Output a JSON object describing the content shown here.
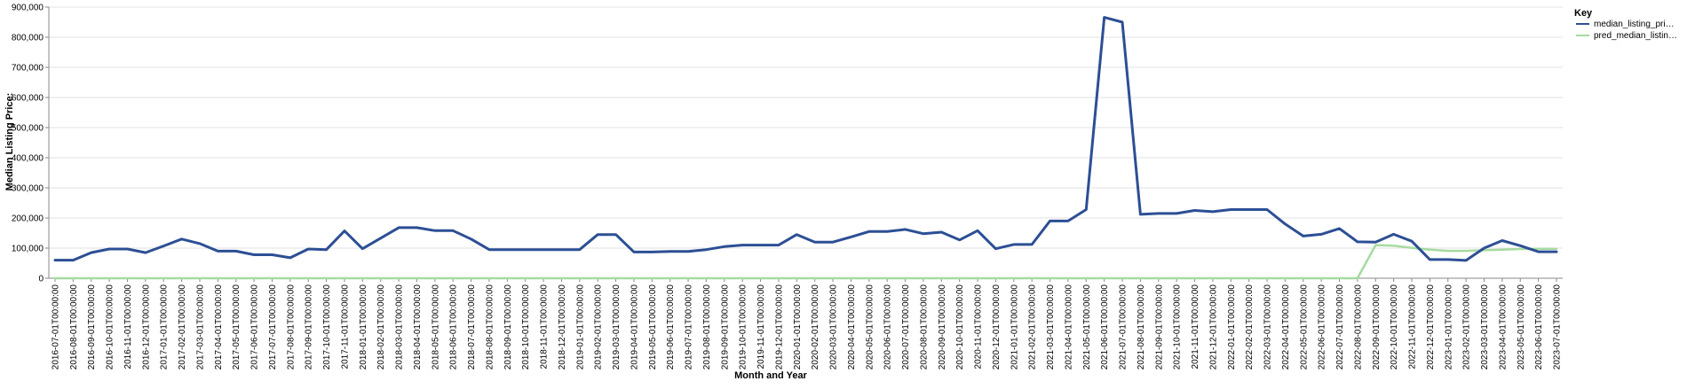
{
  "chart_data": {
    "type": "line",
    "xlabel": "Month and Year",
    "ylabel": "Median Listing Price:",
    "ylim": [
      0,
      900000
    ],
    "yticks": [
      0,
      100000,
      200000,
      300000,
      400000,
      500000,
      600000,
      700000,
      800000,
      900000
    ],
    "ytick_labels": [
      "0",
      "100,000",
      "200,000",
      "300,000",
      "400,000",
      "500,000",
      "600,000",
      "700,000",
      "800,000",
      "900,000"
    ],
    "grid": true,
    "legend": {
      "title": "Key",
      "placement": "top-right"
    },
    "x": [
      "2016-07-01T00:00:00",
      "2016-08-01T00:00:00",
      "2016-09-01T00:00:00",
      "2016-10-01T00:00:00",
      "2016-11-01T00:00:00",
      "2016-12-01T00:00:00",
      "2017-01-01T00:00:00",
      "2017-02-01T00:00:00",
      "2017-03-01T00:00:00",
      "2017-04-01T00:00:00",
      "2017-05-01T00:00:00",
      "2017-06-01T00:00:00",
      "2017-07-01T00:00:00",
      "2017-08-01T00:00:00",
      "2017-09-01T00:00:00",
      "2017-10-01T00:00:00",
      "2017-11-01T00:00:00",
      "2018-01-01T00:00:00",
      "2018-02-01T00:00:00",
      "2018-03-01T00:00:00",
      "2018-04-01T00:00:00",
      "2018-05-01T00:00:00",
      "2018-06-01T00:00:00",
      "2018-07-01T00:00:00",
      "2018-08-01T00:00:00",
      "2018-09-01T00:00:00",
      "2018-10-01T00:00:00",
      "2018-11-01T00:00:00",
      "2018-12-01T00:00:00",
      "2019-01-01T00:00:00",
      "2019-02-01T00:00:00",
      "2019-03-01T00:00:00",
      "2019-04-01T00:00:00",
      "2019-05-01T00:00:00",
      "2019-06-01T00:00:00",
      "2019-07-01T00:00:00",
      "2019-08-01T00:00:00",
      "2019-09-01T00:00:00",
      "2019-10-01T00:00:00",
      "2019-11-01T00:00:00",
      "2019-12-01T00:00:00",
      "2020-01-01T00:00:00",
      "2020-02-01T00:00:00",
      "2020-03-01T00:00:00",
      "2020-04-01T00:00:00",
      "2020-05-01T00:00:00",
      "2020-06-01T00:00:00",
      "2020-07-01T00:00:00",
      "2020-08-01T00:00:00",
      "2020-09-01T00:00:00",
      "2020-10-01T00:00:00",
      "2020-11-01T00:00:00",
      "2020-12-01T00:00:00",
      "2021-01-01T00:00:00",
      "2021-02-01T00:00:00",
      "2021-03-01T00:00:00",
      "2021-04-01T00:00:00",
      "2021-05-01T00:00:00",
      "2021-06-01T00:00:00",
      "2021-07-01T00:00:00",
      "2021-08-01T00:00:00",
      "2021-09-01T00:00:00",
      "2021-10-01T00:00:00",
      "2021-11-01T00:00:00",
      "2021-12-01T00:00:00",
      "2022-01-01T00:00:00",
      "2022-02-01T00:00:00",
      "2022-03-01T00:00:00",
      "2022-04-01T00:00:00",
      "2022-05-01T00:00:00",
      "2022-06-01T00:00:00",
      "2022-07-01T00:00:00",
      "2022-08-01T00:00:00",
      "2022-09-01T00:00:00",
      "2022-10-01T00:00:00",
      "2022-11-01T00:00:00",
      "2022-12-01T00:00:00",
      "2023-01-01T00:00:00",
      "2023-02-01T00:00:00",
      "2023-03-01T00:00:00",
      "2023-04-01T00:00:00",
      "2023-05-01T00:00:00",
      "2023-06-01T00:00:00",
      "2023-07-01T00:00:00"
    ],
    "series": [
      {
        "name": "median_listing_pri…",
        "color": "#2c4f94",
        "values": [
          60000,
          60000,
          85000,
          97000,
          97000,
          85000,
          107000,
          130000,
          115000,
          90000,
          90000,
          78000,
          78000,
          68000,
          97000,
          95000,
          157000,
          98000,
          133000,
          168000,
          168000,
          158000,
          158000,
          130000,
          95000,
          95000,
          95000,
          95000,
          95000,
          95000,
          145000,
          145000,
          87000,
          87000,
          89000,
          89000,
          95000,
          105000,
          110000,
          110000,
          110000,
          145000,
          120000,
          120000,
          137000,
          155000,
          155000,
          162000,
          148000,
          153000,
          127000,
          158000,
          98000,
          112000,
          112000,
          190000,
          190000,
          228000,
          866000,
          850000,
          212000,
          215000,
          215000,
          225000,
          221000,
          228000,
          228000,
          228000,
          180000,
          140000,
          146000,
          165000,
          121000,
          120000,
          146000,
          123000,
          62000,
          62000,
          59000,
          100000,
          125000,
          108000,
          88000,
          88000
        ]
      },
      {
        "name": "pred_median_listin…",
        "color": "#a6dba0",
        "values": [
          0,
          0,
          0,
          0,
          0,
          0,
          0,
          0,
          0,
          0,
          0,
          0,
          0,
          0,
          0,
          0,
          0,
          0,
          0,
          0,
          0,
          0,
          0,
          0,
          0,
          0,
          0,
          0,
          0,
          0,
          0,
          0,
          0,
          0,
          0,
          0,
          0,
          0,
          0,
          0,
          0,
          0,
          0,
          0,
          0,
          0,
          0,
          0,
          0,
          0,
          0,
          0,
          0,
          0,
          0,
          0,
          0,
          0,
          0,
          0,
          0,
          0,
          0,
          0,
          0,
          0,
          0,
          0,
          0,
          0,
          0,
          0,
          0,
          110000,
          108000,
          101000,
          95000,
          91000,
          91000,
          93000,
          95000,
          97000,
          98000,
          98000
        ]
      }
    ]
  }
}
